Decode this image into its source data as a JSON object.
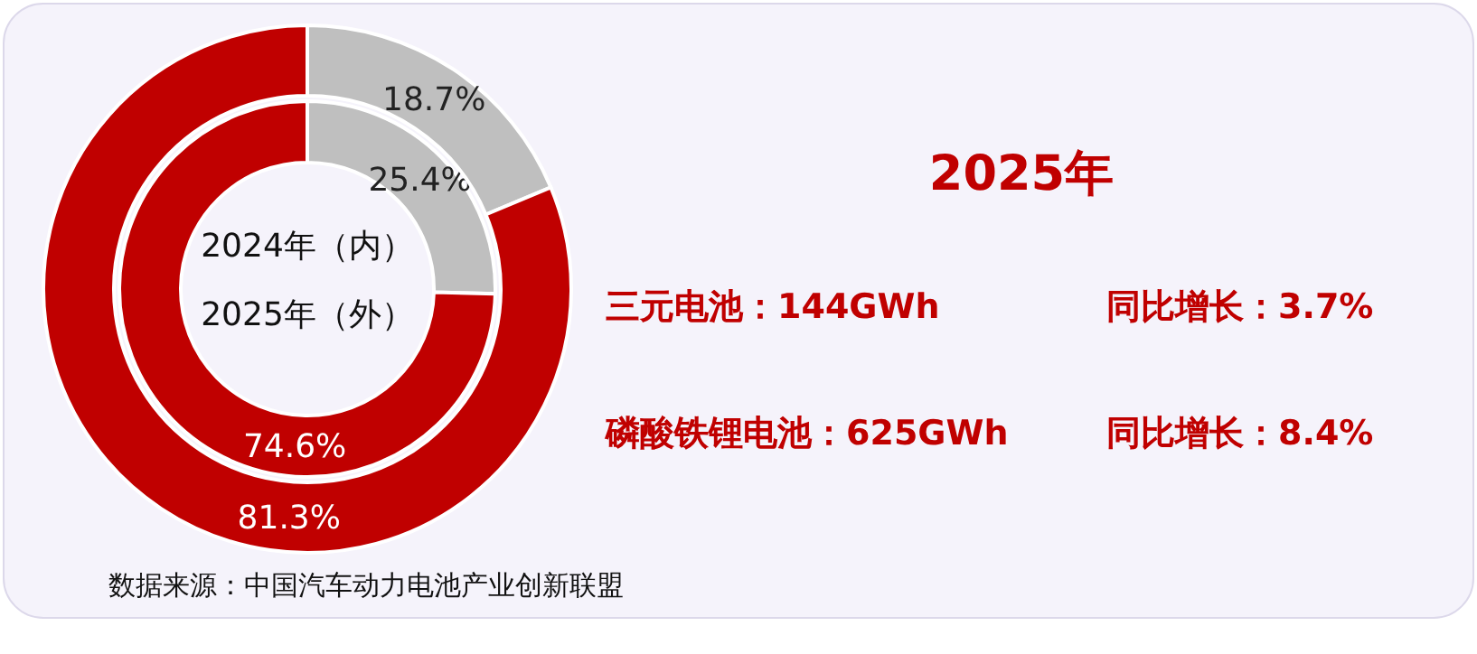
{
  "chart_data": [
    {
      "type": "donut",
      "categories": [
        null,
        null
      ],
      "colors": [
        "#bfbfbf",
        "#c00000"
      ],
      "series": [
        {
          "name": "2024年（内）",
          "values": [
            25.4,
            74.6
          ],
          "value_labels": [
            "25.4%",
            "74.6%"
          ]
        },
        {
          "name": "2025年（外）",
          "values": [
            18.7,
            81.3
          ],
          "value_labels": [
            "18.7%",
            "81.3%"
          ]
        }
      ],
      "annotations": [
        "数据来源：中国汽车动力电池产业创新联盟"
      ]
    },
    {
      "type": "other",
      "title": "2025年",
      "annotations": [
        "三元电池：144GWh",
        "同比增长：3.7%",
        "磷酸铁锂电池：625GWh",
        "同比增长：8.4%"
      ]
    }
  ]
}
